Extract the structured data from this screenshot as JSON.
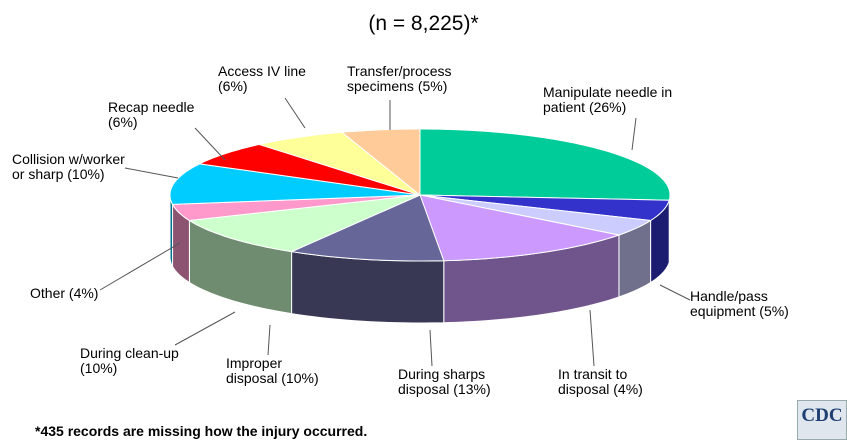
{
  "chart_data": {
    "type": "pie3d",
    "title": "(n = 8,225)*",
    "footnote": "*435 records are missing how the injury occurred.",
    "logo": "CDC",
    "categories": [
      "Manipulate needle in\npatient",
      "Handle/pass\nequipment",
      "In transit to\ndisposal",
      "During sharps\ndisposal",
      "Improper\ndisposal",
      "During clean-up",
      "Other",
      "Collision w/worker\nor sharp",
      "Recap needle",
      "Access IV line",
      "Transfer/process\nspecimens"
    ],
    "values": [
      26,
      5,
      4,
      13,
      10,
      10,
      4,
      10,
      6,
      6,
      5
    ],
    "value_labels": [
      "(26%)",
      "(5%)",
      "(4%)",
      "(13%)",
      "(10%)",
      "(10%)",
      "(4%)",
      "(10%)",
      "(6%)",
      "(6%)",
      "(5%)"
    ],
    "colors": [
      "#00cc99",
      "#3333cc",
      "#ccccff",
      "#cc99ff",
      "#666699",
      "#ccffcc",
      "#ff99cc",
      "#00ccff",
      "#ff0000",
      "#ffff99",
      "#ffcc99"
    ]
  }
}
